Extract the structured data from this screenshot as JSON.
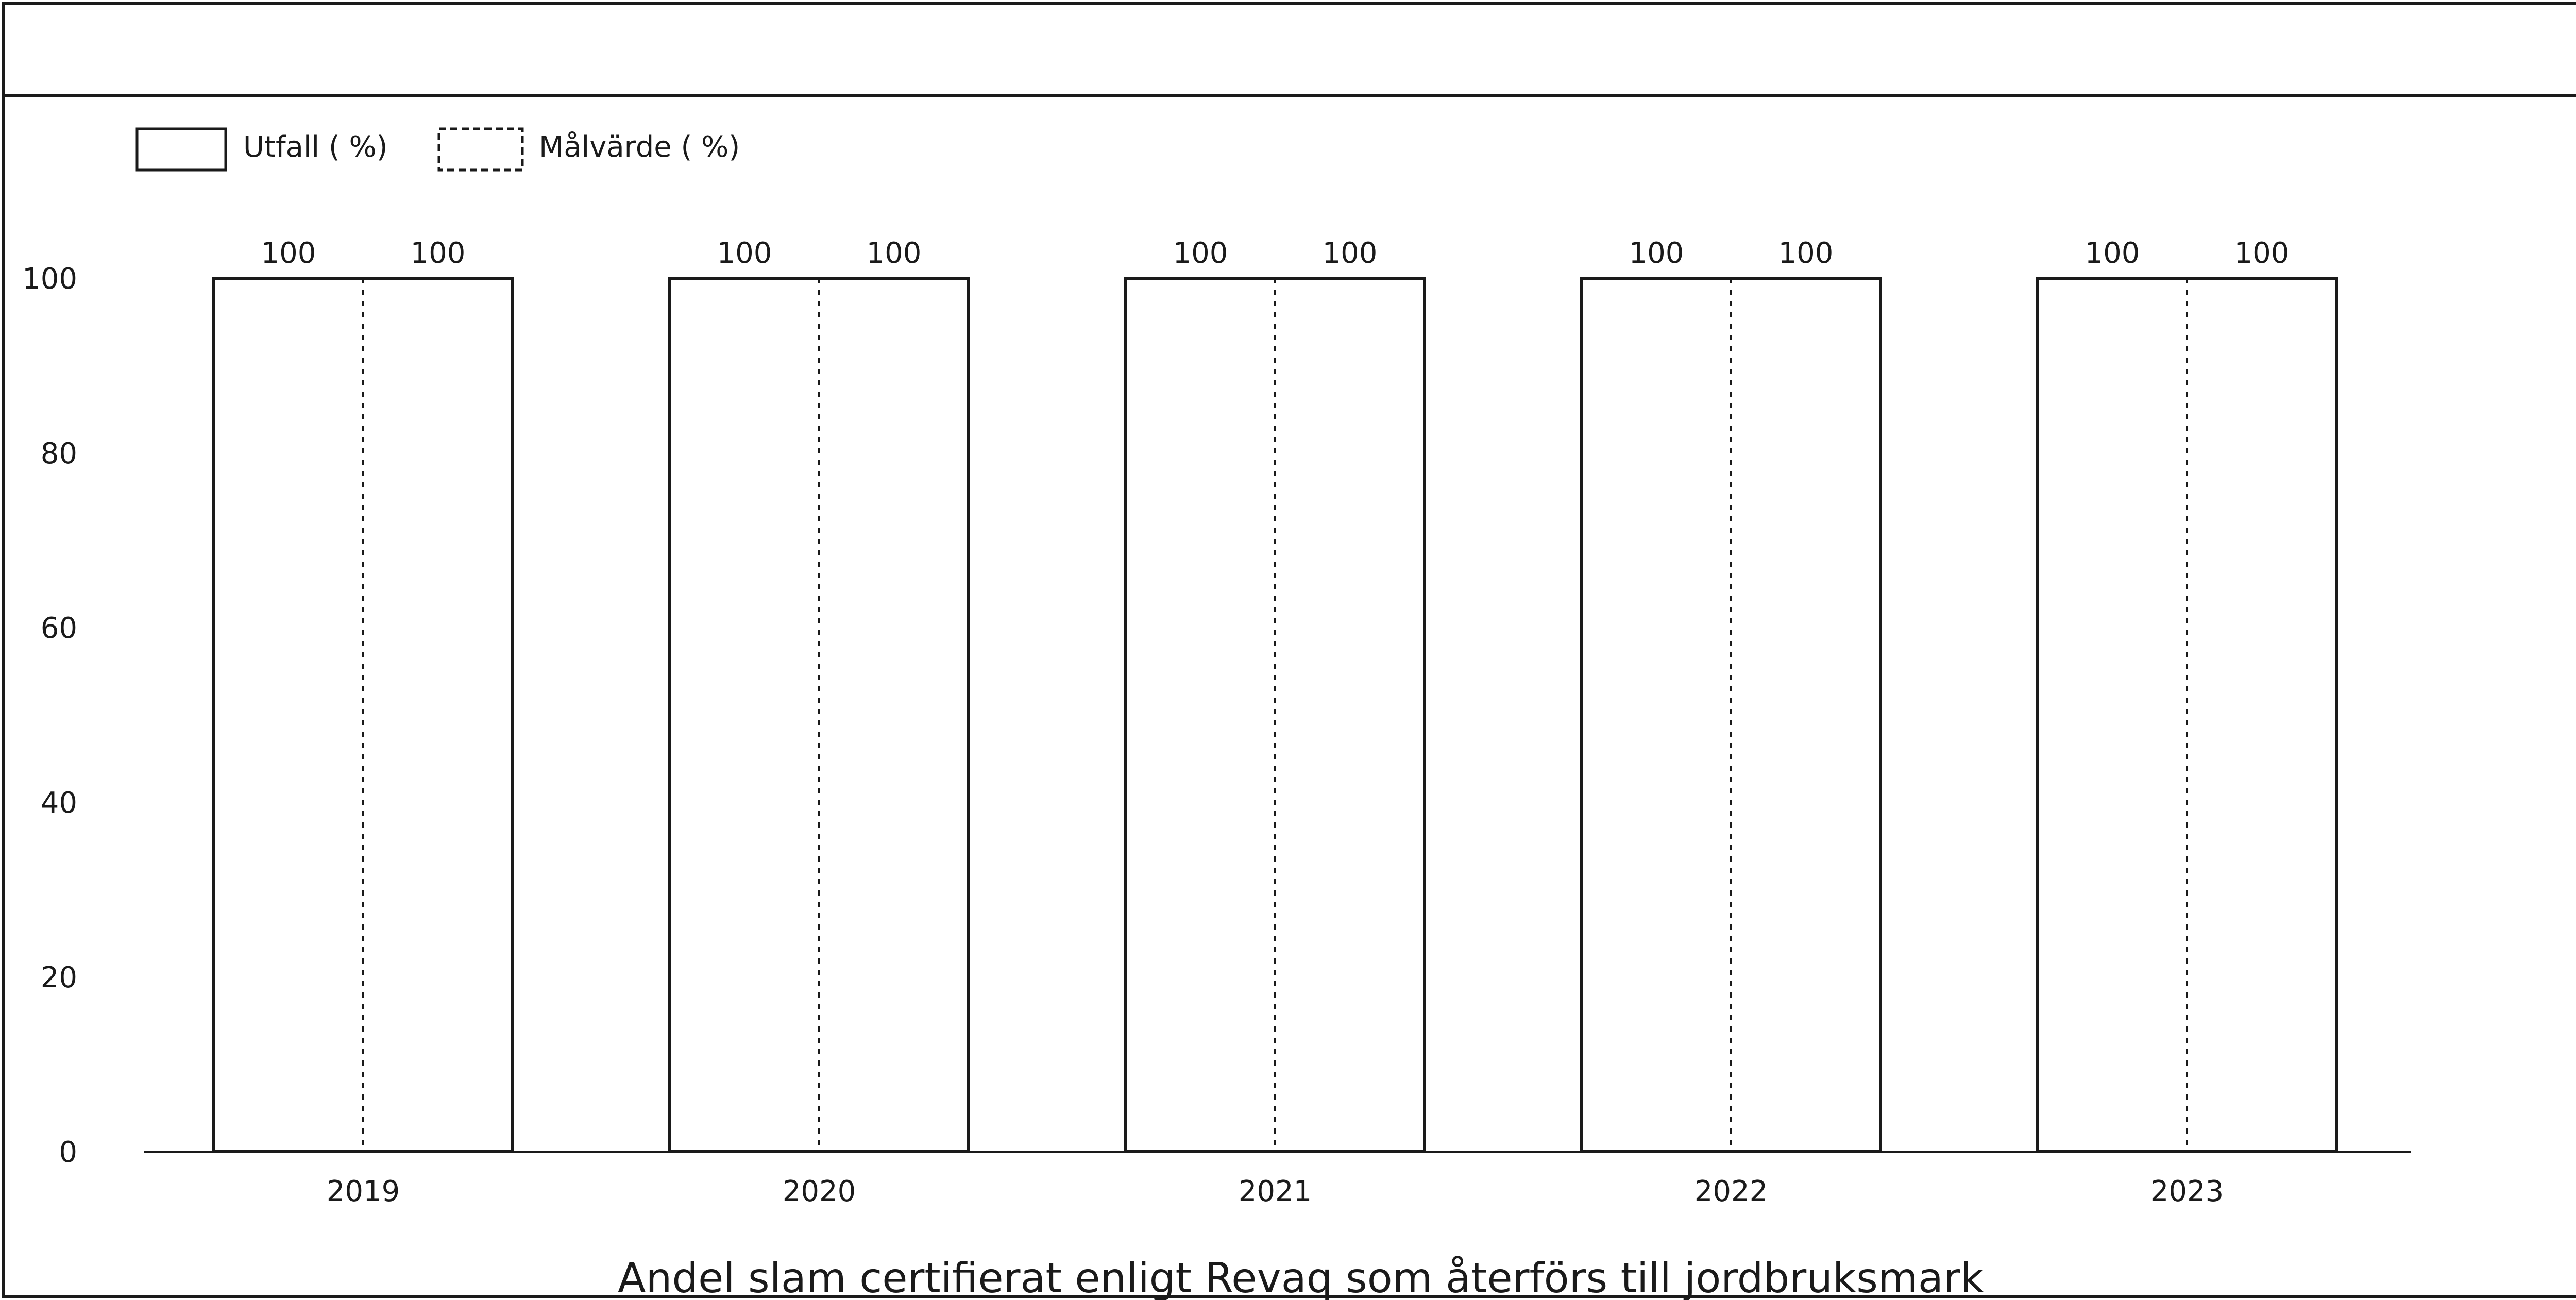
{
  "chart_data": {
    "type": "bar",
    "title": "Andel slam certifierat enligt Revaq som återförs till jordbruksmark",
    "categories": [
      "2019",
      "2020",
      "2021",
      "2022",
      "2023"
    ],
    "series": [
      {
        "name": "Utfall ( %)",
        "values": [
          100,
          100,
          100,
          100,
          100
        ]
      },
      {
        "name": "Målvärde ( %)",
        "values": [
          100,
          100,
          100,
          100,
          100
        ]
      }
    ],
    "data_labels": [
      [
        "100",
        "100"
      ],
      [
        "100",
        "100"
      ],
      [
        "100",
        "100"
      ],
      [
        "100",
        "100"
      ],
      [
        "100",
        "100"
      ]
    ],
    "yticks": [
      "0",
      "20",
      "40",
      "60",
      "80",
      "100"
    ],
    "ylim": [
      0,
      100
    ],
    "xlabel": "",
    "ylabel": "",
    "legend": "top-left",
    "grid": false,
    "colors": {
      "bar_fill": "#ffffff",
      "bar_stroke": "#1a1a1a",
      "axis": "#1a1a1a"
    }
  }
}
